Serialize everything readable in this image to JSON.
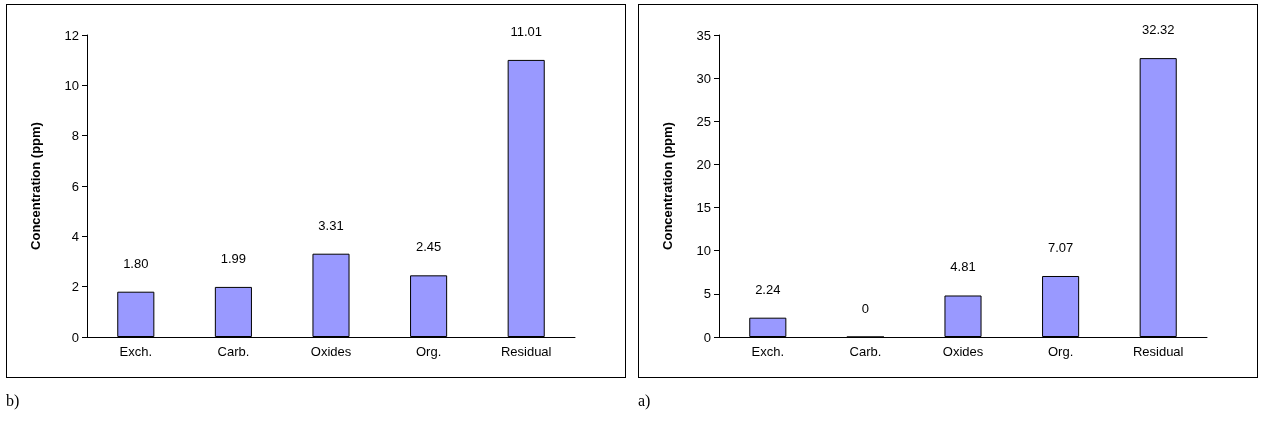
{
  "chart_data": [
    {
      "type": "bar",
      "ylabel": "Concentration (ppm)",
      "categories": [
        "Exch.",
        "Carb.",
        "Oxides",
        "Org.",
        "Residual"
      ],
      "values": [
        1.8,
        1.99,
        3.31,
        2.45,
        11.01
      ],
      "value_labels": [
        "1.80",
        "1.99",
        "3.31",
        "2.45",
        "11.01"
      ],
      "color": "#9999ff",
      "ylim": [
        0,
        12
      ],
      "yticks": [
        0,
        2,
        4,
        6,
        8,
        10,
        12
      ],
      "annotations": [
        "b)"
      ]
    },
    {
      "type": "bar",
      "ylabel": "Concentration (ppm)",
      "categories": [
        "Exch.",
        "Carb.",
        "Oxides",
        "Org.",
        "Residual"
      ],
      "values": [
        2.24,
        0,
        4.81,
        7.07,
        32.32
      ],
      "value_labels": [
        "2.24",
        "0",
        "4.81",
        "7.07",
        "32.32"
      ],
      "color": "#9999ff",
      "ylim": [
        0,
        35
      ],
      "yticks": [
        0,
        5,
        10,
        15,
        20,
        25,
        30,
        35
      ],
      "annotations": [
        "a)"
      ]
    }
  ]
}
